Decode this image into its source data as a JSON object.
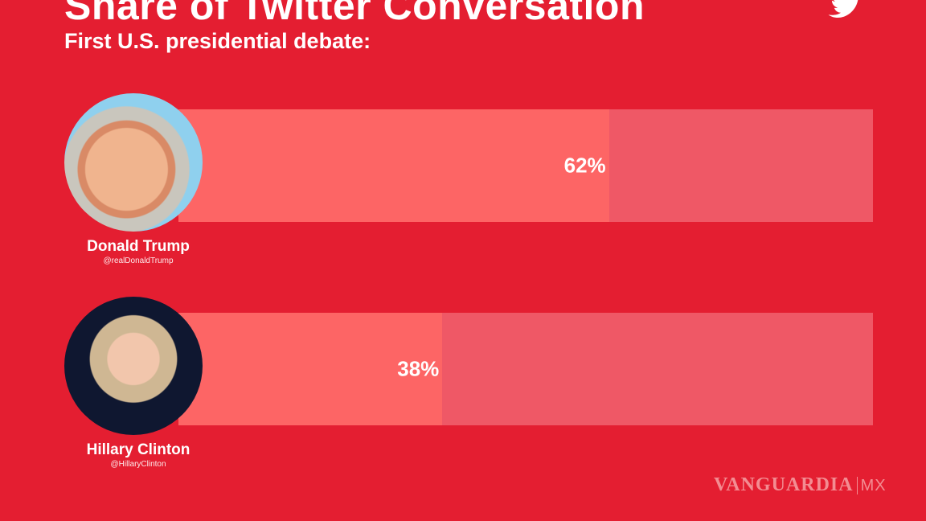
{
  "title": "Share of Twitter Conversation",
  "subtitle": "First U.S. presidential debate:",
  "watermark": {
    "brand": "VANGUARDIA",
    "suffix": "MX"
  },
  "colors": {
    "background": "#e41e31",
    "bar_fill": "#fd6565",
    "bar_track": "#ef5866"
  },
  "chart_data": {
    "type": "bar",
    "orientation": "horizontal",
    "title": "Share of Twitter Conversation",
    "subtitle": "First U.S. presidential debate:",
    "xlim": [
      0,
      100
    ],
    "categories": [
      "Donald Trump",
      "Hillary Clinton"
    ],
    "handles": [
      "@realDonaldTrump",
      "@HillaryClinton"
    ],
    "values": [
      62,
      38
    ],
    "labels": [
      "62%",
      "38%"
    ]
  }
}
